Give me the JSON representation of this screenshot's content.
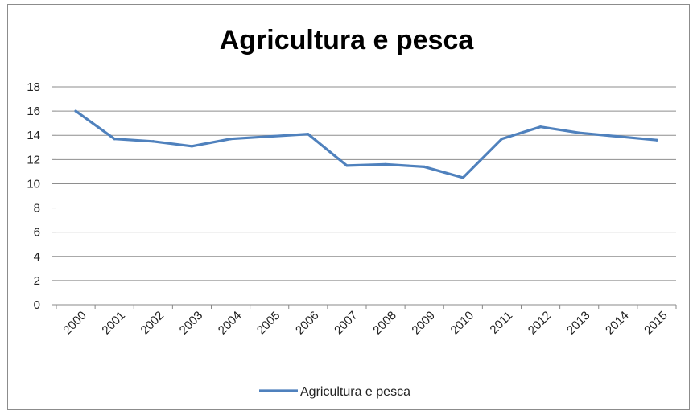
{
  "chart_data": {
    "type": "line",
    "title": "Agricultura e pesca",
    "xlabel": "",
    "ylabel": "",
    "x": [
      "2000",
      "2001",
      "2002",
      "2003",
      "2004",
      "2005",
      "2006",
      "2007",
      "2008",
      "2009",
      "2010",
      "2011",
      "2012",
      "2013",
      "2014",
      "2015"
    ],
    "series": [
      {
        "name": "Agricultura e pesca",
        "values": [
          16.0,
          13.7,
          13.5,
          13.1,
          13.7,
          13.9,
          14.1,
          11.5,
          11.6,
          11.4,
          10.5,
          13.7,
          14.7,
          14.2,
          13.9,
          13.6
        ],
        "color": "#4f81bd"
      }
    ],
    "ylim": [
      0,
      18
    ],
    "yticks": [
      0,
      2,
      4,
      6,
      8,
      10,
      12,
      14,
      16,
      18
    ],
    "grid": true,
    "legend_position": "bottom"
  }
}
